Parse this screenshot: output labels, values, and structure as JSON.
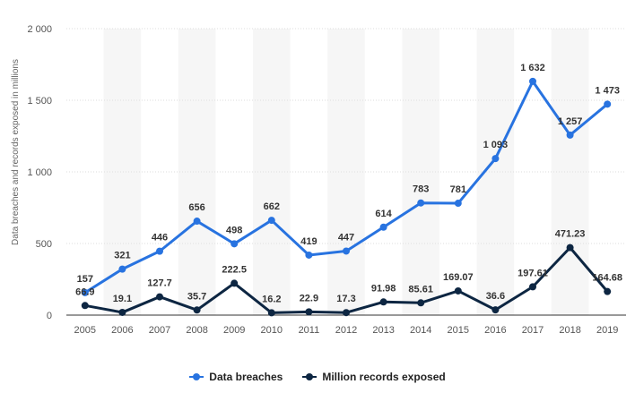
{
  "chart_data": {
    "type": "line",
    "title": "",
    "xlabel": "",
    "ylabel": "Data breaches and records exposed in millions",
    "ylim": [
      0,
      2000
    ],
    "yticks": [
      0,
      500,
      1000,
      1500,
      2000
    ],
    "ytick_labels": [
      "0",
      "500",
      "1 000",
      "1 500",
      "2 000"
    ],
    "categories": [
      "2005",
      "2006",
      "2007",
      "2008",
      "2009",
      "2010",
      "2011",
      "2012",
      "2013",
      "2014",
      "2015",
      "2016",
      "2017",
      "2018",
      "2019"
    ],
    "grid": true,
    "legend_position": "bottom-center",
    "series": [
      {
        "name": "Data breaches",
        "color": "#2873e0",
        "values": [
          157,
          321,
          446,
          656,
          498,
          662,
          419,
          447,
          614,
          783,
          781,
          1093,
          1632,
          1257,
          1473
        ],
        "labels": [
          "157",
          "321",
          "446",
          "656",
          "498",
          "662",
          "419",
          "447",
          "614",
          "783",
          "781",
          "1 093",
          "1 632",
          "1 257",
          "1 473"
        ]
      },
      {
        "name": "Million records exposed",
        "color": "#0d2642",
        "values": [
          66.9,
          19.1,
          127.7,
          35.7,
          222.5,
          16.2,
          22.9,
          17.3,
          91.98,
          85.61,
          169.07,
          36.6,
          197.61,
          471.23,
          164.68
        ],
        "labels": [
          "66.9",
          "19.1",
          "127.7",
          "35.7",
          "222.5",
          "16.2",
          "22.9",
          "17.3",
          "91.98",
          "85.61",
          "169.07",
          "36.6",
          "197.61",
          "471.23",
          "164.68"
        ]
      }
    ]
  },
  "legend": {
    "items": [
      {
        "label": "Data breaches",
        "color": "#2873e0"
      },
      {
        "label": "Million records exposed",
        "color": "#0d2642"
      }
    ]
  }
}
